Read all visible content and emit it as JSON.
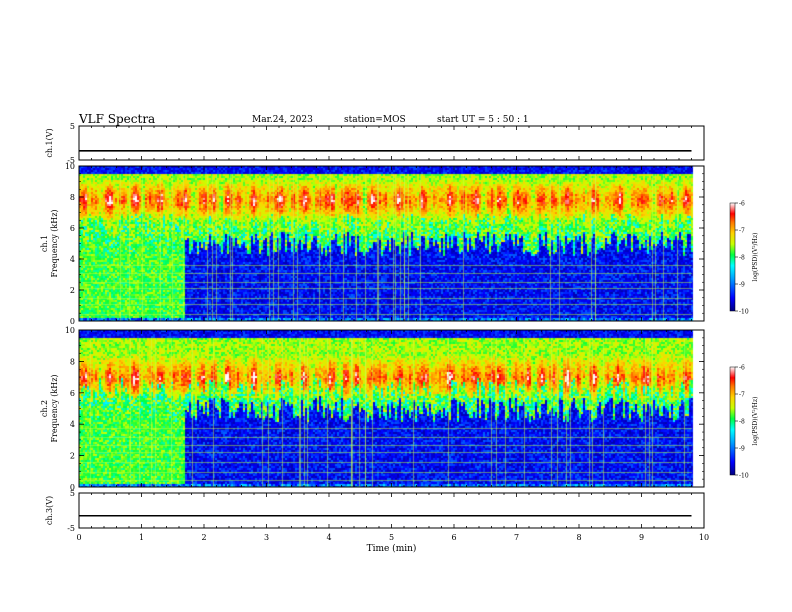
{
  "header": {
    "title": "VLF Spectra",
    "date": "Mar.24, 2023",
    "station": "station=MOS",
    "start": "start UT =  5 : 50 : 1"
  },
  "chart_data": [
    {
      "type": "line",
      "ylabel": "ch.1(V)",
      "ylim": [
        -5,
        5
      ],
      "yticks": [
        "5",
        "-5"
      ],
      "xlim": [
        0,
        10
      ],
      "series": [
        {
          "x": [
            0,
            9.8
          ],
          "values": [
            -2.3,
            -2.3
          ]
        }
      ]
    },
    {
      "type": "heatmap",
      "ylabel_line1": "ch.1",
      "ylabel_line2": "Frequency (kHz)",
      "ylim": [
        0,
        10
      ],
      "yticks": [
        "0",
        "2",
        "4",
        "6",
        "8",
        "10"
      ],
      "xlim": [
        0,
        10
      ],
      "data_end_min": 9.8,
      "noise_end_min": 1.7,
      "intense_band_khz": [
        6.5,
        9.2
      ],
      "colorbar": {
        "label": "log(PSD)(V²/Hz)",
        "min": -10,
        "max": -6,
        "ticks": [
          "-6",
          "-7",
          "-8",
          "-9",
          "-10"
        ]
      }
    },
    {
      "type": "heatmap",
      "ylabel_line1": "ch.2",
      "ylabel_line2": "Frequency (kHz)",
      "ylim": [
        0,
        10
      ],
      "yticks": [
        "0",
        "2",
        "4",
        "6",
        "8",
        "10"
      ],
      "xlim": [
        0,
        10
      ],
      "data_end_min": 9.8,
      "noise_end_min": 1.7,
      "intense_band_khz": [
        5.5,
        8.5
      ],
      "colorbar": {
        "label": "log(PSD)(V²/Hz)",
        "min": -10,
        "max": -6,
        "ticks": [
          "-6",
          "-7",
          "-8",
          "-9",
          "-10"
        ]
      }
    },
    {
      "type": "line",
      "ylabel": "ch.3(V)",
      "ylim": [
        -5,
        5
      ],
      "yticks": [
        "5",
        "-5"
      ],
      "xlim": [
        0,
        10
      ],
      "xlabel": "Time (min)",
      "xticks": [
        "0",
        "1",
        "2",
        "3",
        "4",
        "5",
        "6",
        "7",
        "8",
        "9",
        "10"
      ],
      "series": [
        {
          "x": [
            0,
            9.8
          ],
          "values": [
            -1.5,
            -1.5
          ]
        }
      ]
    }
  ],
  "colors": {
    "scale": [
      "#000080",
      "#0000ff",
      "#00a0ff",
      "#00ffff",
      "#00ff40",
      "#c8ff00",
      "#ffd200",
      "#ff7800",
      "#ff0000",
      "#ffffff"
    ]
  }
}
